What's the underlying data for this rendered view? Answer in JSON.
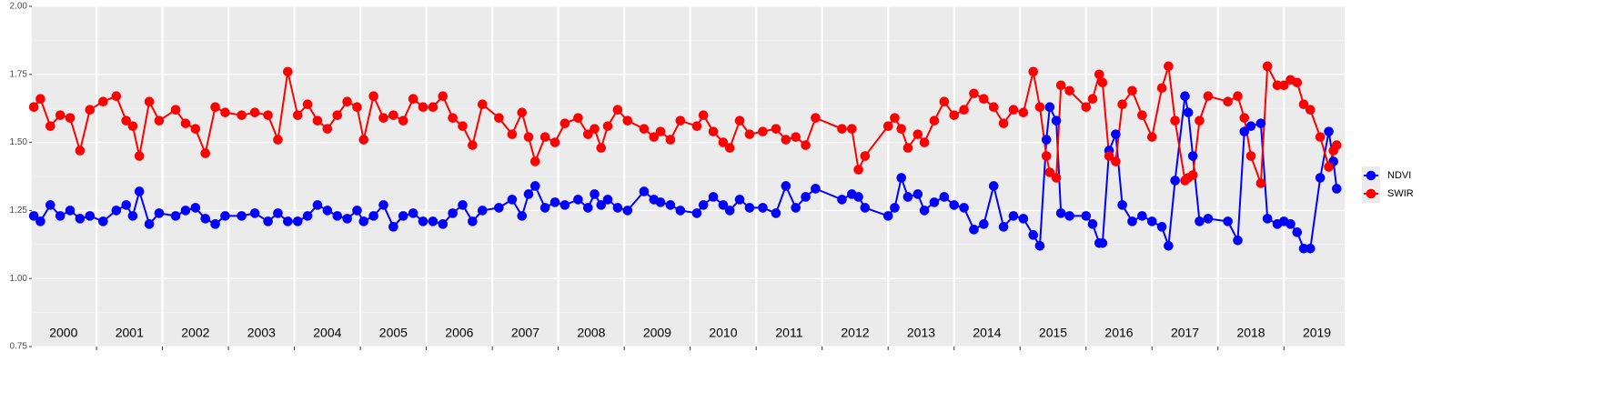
{
  "chart_data": {
    "type": "line",
    "x": [
      2000.05,
      2000.15,
      2000.3,
      2000.45,
      2000.6,
      2000.75,
      2000.9,
      2001.1,
      2001.3,
      2001.45,
      2001.55,
      2001.65,
      2001.8,
      2001.95,
      2002.2,
      2002.35,
      2002.5,
      2002.65,
      2002.8,
      2002.95,
      2003.2,
      2003.4,
      2003.6,
      2003.75,
      2003.9,
      2004.05,
      2004.2,
      2004.35,
      2004.5,
      2004.65,
      2004.8,
      2004.95,
      2005.05,
      2005.2,
      2005.35,
      2005.5,
      2005.65,
      2005.8,
      2005.95,
      2006.1,
      2006.25,
      2006.4,
      2006.55,
      2006.7,
      2006.85,
      2007.1,
      2007.3,
      2007.45,
      2007.55,
      2007.65,
      2007.8,
      2007.95,
      2008.1,
      2008.3,
      2008.45,
      2008.55,
      2008.65,
      2008.75,
      2008.9,
      2009.05,
      2009.3,
      2009.45,
      2009.55,
      2009.7,
      2009.85,
      2010.1,
      2010.2,
      2010.35,
      2010.5,
      2010.6,
      2010.75,
      2010.9,
      2011.1,
      2011.3,
      2011.45,
      2011.6,
      2011.75,
      2011.9,
      2012.3,
      2012.45,
      2012.55,
      2012.65,
      2013.0,
      2013.1,
      2013.2,
      2013.3,
      2013.45,
      2013.55,
      2013.7,
      2013.85,
      2014.0,
      2014.15,
      2014.3,
      2014.45,
      2014.6,
      2014.75,
      2014.9,
      2015.05,
      2015.2,
      2015.3,
      2015.4,
      2015.45,
      2015.55,
      2015.62,
      2015.75,
      2016.0,
      2016.1,
      2016.2,
      2016.25,
      2016.35,
      2016.45,
      2016.55,
      2016.7,
      2016.85,
      2017.0,
      2017.15,
      2017.25,
      2017.35,
      2017.5,
      2017.55,
      2017.62,
      2017.72,
      2017.85,
      2018.15,
      2018.3,
      2018.4,
      2018.5,
      2018.65,
      2018.75,
      2018.9,
      2019.0,
      2019.1,
      2019.2,
      2019.3,
      2019.4,
      2019.55,
      2019.68,
      2019.75,
      2019.8
    ],
    "series": [
      {
        "name": "NDVI",
        "color": "#0000ff",
        "values": [
          1.23,
          1.21,
          1.27,
          1.23,
          1.25,
          1.22,
          1.23,
          1.21,
          1.25,
          1.27,
          1.23,
          1.32,
          1.2,
          1.24,
          1.23,
          1.25,
          1.26,
          1.22,
          1.2,
          1.23,
          1.23,
          1.24,
          1.21,
          1.24,
          1.21,
          1.21,
          1.23,
          1.27,
          1.25,
          1.23,
          1.22,
          1.25,
          1.21,
          1.23,
          1.27,
          1.19,
          1.23,
          1.24,
          1.21,
          1.21,
          1.2,
          1.24,
          1.27,
          1.21,
          1.25,
          1.26,
          1.29,
          1.23,
          1.31,
          1.34,
          1.26,
          1.28,
          1.27,
          1.29,
          1.26,
          1.31,
          1.27,
          1.29,
          1.26,
          1.25,
          1.32,
          1.29,
          1.28,
          1.27,
          1.25,
          1.24,
          1.27,
          1.3,
          1.27,
          1.25,
          1.29,
          1.26,
          1.26,
          1.24,
          1.34,
          1.26,
          1.3,
          1.33,
          1.29,
          1.31,
          1.3,
          1.26,
          1.23,
          1.26,
          1.37,
          1.3,
          1.31,
          1.25,
          1.28,
          1.3,
          1.27,
          1.26,
          1.18,
          1.2,
          1.34,
          1.19,
          1.23,
          1.22,
          1.16,
          1.12,
          1.51,
          1.63,
          1.58,
          1.24,
          1.23,
          1.23,
          1.2,
          1.13,
          1.13,
          1.47,
          1.53,
          1.27,
          1.21,
          1.23,
          1.21,
          1.19,
          1.12,
          1.36,
          1.67,
          1.61,
          1.45,
          1.21,
          1.22,
          1.21,
          1.14,
          1.54,
          1.56,
          1.57,
          1.22,
          1.2,
          1.21,
          1.2,
          1.17,
          1.11,
          1.11,
          1.37,
          1.54,
          1.43,
          1.33
        ]
      },
      {
        "name": "SWIR",
        "color": "#ff0000",
        "values": [
          1.63,
          1.66,
          1.56,
          1.6,
          1.59,
          1.47,
          1.62,
          1.65,
          1.67,
          1.58,
          1.56,
          1.45,
          1.65,
          1.58,
          1.62,
          1.57,
          1.55,
          1.46,
          1.63,
          1.61,
          1.6,
          1.61,
          1.6,
          1.51,
          1.76,
          1.6,
          1.64,
          1.58,
          1.55,
          1.6,
          1.65,
          1.63,
          1.51,
          1.67,
          1.59,
          1.6,
          1.58,
          1.66,
          1.63,
          1.63,
          1.67,
          1.59,
          1.56,
          1.49,
          1.64,
          1.59,
          1.53,
          1.61,
          1.52,
          1.43,
          1.52,
          1.5,
          1.57,
          1.59,
          1.53,
          1.55,
          1.48,
          1.56,
          1.62,
          1.58,
          1.55,
          1.52,
          1.54,
          1.51,
          1.58,
          1.56,
          1.6,
          1.54,
          1.5,
          1.48,
          1.58,
          1.53,
          1.54,
          1.55,
          1.51,
          1.52,
          1.49,
          1.59,
          1.55,
          1.55,
          1.4,
          1.45,
          1.56,
          1.59,
          1.55,
          1.48,
          1.53,
          1.5,
          1.58,
          1.65,
          1.6,
          1.62,
          1.68,
          1.66,
          1.63,
          1.57,
          1.62,
          1.61,
          1.76,
          1.63,
          1.45,
          1.39,
          1.37,
          1.71,
          1.69,
          1.63,
          1.66,
          1.75,
          1.72,
          1.45,
          1.43,
          1.64,
          1.69,
          1.6,
          1.52,
          1.7,
          1.78,
          1.58,
          1.36,
          1.37,
          1.38,
          1.58,
          1.67,
          1.65,
          1.67,
          1.59,
          1.45,
          1.35,
          1.78,
          1.71,
          1.71,
          1.73,
          1.72,
          1.64,
          1.62,
          1.52,
          1.41,
          1.47,
          1.49
        ]
      }
    ],
    "xlim": [
      2000.02,
      2019.92
    ],
    "xticks": [
      {
        "value": 2000.5,
        "label": "2000"
      },
      {
        "value": 2001.5,
        "label": "2001"
      },
      {
        "value": 2002.5,
        "label": "2002"
      },
      {
        "value": 2003.5,
        "label": "2003"
      },
      {
        "value": 2004.5,
        "label": "2004"
      },
      {
        "value": 2005.5,
        "label": "2005"
      },
      {
        "value": 2006.5,
        "label": "2006"
      },
      {
        "value": 2007.5,
        "label": "2007"
      },
      {
        "value": 2008.5,
        "label": "2008"
      },
      {
        "value": 2009.5,
        "label": "2009"
      },
      {
        "value": 2010.5,
        "label": "2010"
      },
      {
        "value": 2011.5,
        "label": "2011"
      },
      {
        "value": 2012.5,
        "label": "2012"
      },
      {
        "value": 2013.5,
        "label": "2013"
      },
      {
        "value": 2014.5,
        "label": "2014"
      },
      {
        "value": 2015.5,
        "label": "2015"
      },
      {
        "value": 2016.5,
        "label": "2016"
      },
      {
        "value": 2017.5,
        "label": "2017"
      },
      {
        "value": 2018.5,
        "label": "2018"
      },
      {
        "value": 2019.5,
        "label": "2019"
      }
    ],
    "xbreaks": [
      2001,
      2002,
      2003,
      2004,
      2005,
      2006,
      2007,
      2008,
      2009,
      2010,
      2011,
      2012,
      2013,
      2014,
      2015,
      2016,
      2017,
      2018,
      2019
    ],
    "ylim": [
      0.75,
      2.0
    ],
    "yticks": [
      0.75,
      {
        "value": 1,
        "label": "1.00"
      },
      1.25,
      {
        "value": 1.5,
        "label": "1.50"
      },
      1.75,
      {
        "value": 2,
        "label": "2.00"
      }
    ],
    "grid": true,
    "legend": "right"
  }
}
